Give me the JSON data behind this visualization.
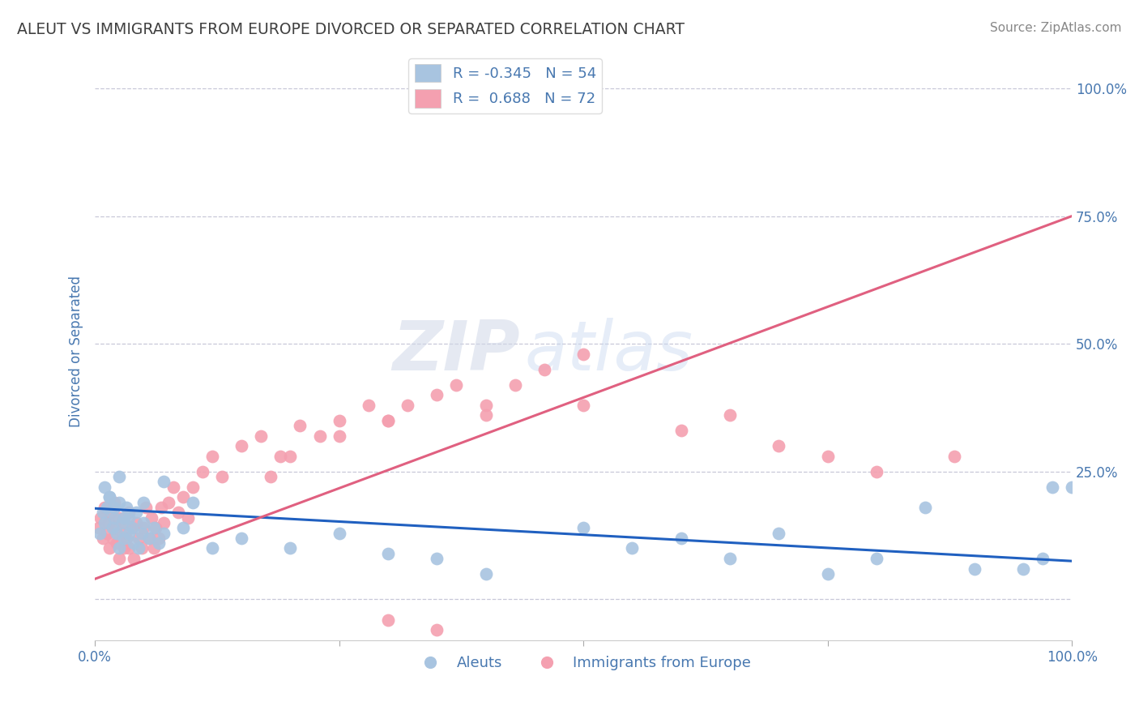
{
  "title": "ALEUT VS IMMIGRANTS FROM EUROPE DIVORCED OR SEPARATED CORRELATION CHART",
  "source": "Source: ZipAtlas.com",
  "ylabel": "Divorced or Separated",
  "watermark_zip": "ZIP",
  "watermark_atlas": "atlas",
  "aleut_R": -0.345,
  "aleut_N": 54,
  "europe_R": 0.688,
  "europe_N": 72,
  "aleut_color": "#a8c4e0",
  "europe_color": "#f4a0b0",
  "aleut_line_color": "#2060c0",
  "europe_line_color": "#e06080",
  "background_color": "#ffffff",
  "grid_color": "#c8c8d8",
  "title_color": "#404040",
  "axis_label_color": "#4878b0",
  "legend_color": "#4878b0",
  "xlim": [
    0,
    1
  ],
  "ylim": [
    -0.08,
    1.05
  ],
  "ytick_positions": [
    0,
    0.25,
    0.5,
    0.75,
    1.0
  ],
  "ytick_labels": [
    "",
    "25.0%",
    "50.0%",
    "75.0%",
    "100.0%"
  ],
  "xtick_positions": [
    0,
    0.25,
    0.5,
    0.75,
    1.0
  ],
  "xtick_labels": [
    "0.0%",
    "",
    "",
    "",
    "100.0%"
  ],
  "aleut_scatter_x": [
    0.005,
    0.008,
    0.01,
    0.012,
    0.015,
    0.018,
    0.02,
    0.022,
    0.025,
    0.025,
    0.028,
    0.03,
    0.032,
    0.035,
    0.035,
    0.038,
    0.04,
    0.042,
    0.045,
    0.048,
    0.05,
    0.055,
    0.06,
    0.065,
    0.07,
    0.01,
    0.015,
    0.02,
    0.025,
    0.03,
    0.05,
    0.07,
    0.09,
    0.1,
    0.12,
    0.15,
    0.2,
    0.25,
    0.3,
    0.35,
    0.4,
    0.5,
    0.55,
    0.6,
    0.65,
    0.7,
    0.75,
    0.8,
    0.85,
    0.9,
    0.95,
    0.97,
    0.98,
    1.0
  ],
  "aleut_scatter_y": [
    0.13,
    0.17,
    0.15,
    0.18,
    0.2,
    0.14,
    0.16,
    0.13,
    0.19,
    0.1,
    0.15,
    0.12,
    0.18,
    0.13,
    0.16,
    0.14,
    0.11,
    0.17,
    0.1,
    0.13,
    0.15,
    0.12,
    0.14,
    0.11,
    0.13,
    0.22,
    0.2,
    0.18,
    0.24,
    0.16,
    0.19,
    0.23,
    0.14,
    0.19,
    0.1,
    0.12,
    0.1,
    0.13,
    0.09,
    0.08,
    0.05,
    0.14,
    0.1,
    0.12,
    0.08,
    0.13,
    0.05,
    0.08,
    0.18,
    0.06,
    0.06,
    0.08,
    0.22,
    0.22
  ],
  "europe_scatter_x": [
    0.004,
    0.006,
    0.008,
    0.01,
    0.012,
    0.014,
    0.015,
    0.016,
    0.018,
    0.02,
    0.02,
    0.022,
    0.025,
    0.025,
    0.028,
    0.03,
    0.03,
    0.032,
    0.035,
    0.035,
    0.038,
    0.04,
    0.042,
    0.045,
    0.048,
    0.05,
    0.052,
    0.055,
    0.058,
    0.06,
    0.062,
    0.065,
    0.068,
    0.07,
    0.075,
    0.08,
    0.085,
    0.09,
    0.095,
    0.1,
    0.11,
    0.12,
    0.13,
    0.15,
    0.17,
    0.19,
    0.21,
    0.23,
    0.25,
    0.28,
    0.3,
    0.32,
    0.35,
    0.37,
    0.4,
    0.43,
    0.46,
    0.5,
    0.3,
    0.35,
    0.18,
    0.2,
    0.25,
    0.3,
    0.4,
    0.5,
    0.6,
    0.65,
    0.7,
    0.75,
    0.8,
    0.88
  ],
  "europe_scatter_y": [
    0.14,
    0.16,
    0.12,
    0.18,
    0.13,
    0.15,
    0.1,
    0.17,
    0.12,
    0.14,
    0.19,
    0.11,
    0.16,
    0.08,
    0.13,
    0.1,
    0.15,
    0.12,
    0.17,
    0.1,
    0.14,
    0.08,
    0.15,
    0.12,
    0.1,
    0.14,
    0.18,
    0.12,
    0.16,
    0.1,
    0.14,
    0.12,
    0.18,
    0.15,
    0.19,
    0.22,
    0.17,
    0.2,
    0.16,
    0.22,
    0.25,
    0.28,
    0.24,
    0.3,
    0.32,
    0.28,
    0.34,
    0.32,
    0.35,
    0.38,
    0.35,
    0.38,
    0.4,
    0.42,
    0.38,
    0.42,
    0.45,
    0.48,
    -0.04,
    -0.06,
    0.24,
    0.28,
    0.32,
    0.35,
    0.36,
    0.38,
    0.33,
    0.36,
    0.3,
    0.28,
    0.25,
    0.28
  ],
  "aleut_trend_x": [
    0.0,
    1.0
  ],
  "aleut_trend_y": [
    0.178,
    0.075
  ],
  "europe_trend_x": [
    0.0,
    1.0
  ],
  "europe_trend_y": [
    0.04,
    0.75
  ]
}
